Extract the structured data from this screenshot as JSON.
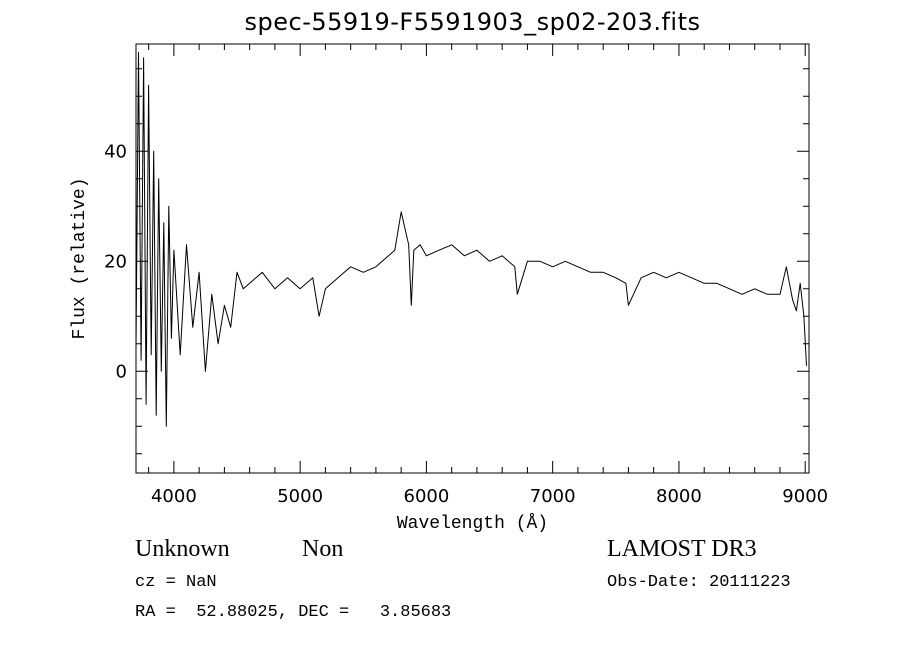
{
  "chart_data": {
    "type": "line",
    "title": "spec-55919-F5591903_sp02-203.fits",
    "xlabel": "Wavelength (Å)",
    "ylabel": "Flux (relative)",
    "xlim": [
      3700,
      9030
    ],
    "ylim": [
      -18.5,
      59.5
    ],
    "x_ticks": [
      4000,
      5000,
      6000,
      7000,
      8000,
      9000
    ],
    "y_ticks": [
      0,
      20,
      40
    ],
    "series": [
      {
        "name": "flux",
        "x": [
          3700,
          3720,
          3740,
          3760,
          3780,
          3800,
          3820,
          3840,
          3860,
          3880,
          3900,
          3920,
          3940,
          3960,
          3980,
          4000,
          4050,
          4100,
          4150,
          4200,
          4250,
          4300,
          4350,
          4400,
          4450,
          4500,
          4550,
          4600,
          4700,
          4800,
          4900,
          5000,
          5100,
          5150,
          5200,
          5300,
          5400,
          5500,
          5600,
          5700,
          5750,
          5800,
          5830,
          5860,
          5880,
          5900,
          5950,
          6000,
          6100,
          6200,
          6300,
          6400,
          6500,
          6600,
          6700,
          6720,
          6800,
          6900,
          7000,
          7100,
          7200,
          7300,
          7400,
          7500,
          7580,
          7600,
          7700,
          7800,
          7900,
          8000,
          8100,
          8200,
          8300,
          8400,
          8500,
          8600,
          8700,
          8800,
          8850,
          8900,
          8930,
          8960,
          8990,
          9010
        ],
        "values": [
          4,
          58,
          2,
          57,
          -6,
          52,
          3,
          40,
          -8,
          35,
          0,
          27,
          -10,
          30,
          6,
          22,
          3,
          23,
          8,
          18,
          0,
          14,
          5,
          12,
          8,
          18,
          15,
          16,
          18,
          15,
          17,
          15,
          17,
          10,
          15,
          17,
          19,
          18,
          19,
          21,
          22,
          29,
          26,
          23,
          12,
          22,
          23,
          21,
          22,
          23,
          21,
          22,
          20,
          21,
          19,
          14,
          20,
          20,
          19,
          20,
          19,
          18,
          18,
          17,
          16,
          12,
          17,
          18,
          17,
          18,
          17,
          16,
          16,
          15,
          14,
          15,
          14,
          14,
          19,
          13,
          11,
          16,
          10,
          1
        ]
      }
    ]
  },
  "labels": {
    "object_class": "Unknown",
    "subclass": "Non",
    "survey": "LAMOST DR3",
    "cz": "cz = NaN",
    "obs_date": "Obs-Date: 20111223",
    "coords": "RA =  52.88025, DEC =   3.85683"
  }
}
